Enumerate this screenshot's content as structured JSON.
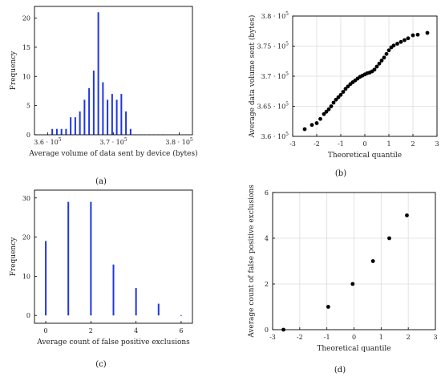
{
  "chart_data": [
    {
      "panel": "(a)",
      "type": "bar",
      "xlabel": "Average volume of data sent by device (bytes)",
      "ylabel": "Frequency",
      "xlim": [
        358000,
        382000
      ],
      "ylim": [
        0,
        22
      ],
      "xticks": [
        360000,
        370000,
        380000
      ],
      "xtick_labels": [
        "3.6 · 10^5",
        "3.7 · 10^5",
        "3.8 · 10^5"
      ],
      "yticks": [
        0,
        5,
        10,
        15,
        20
      ],
      "grid": false,
      "bar_color": "#1f36e0",
      "x": [
        360000,
        360700,
        361400,
        362100,
        362800,
        363500,
        364200,
        364900,
        365600,
        366300,
        367000,
        367700,
        368400,
        369100,
        369800,
        370500,
        371200,
        371900,
        372600,
        373300,
        374000,
        374700,
        375400,
        376100,
        376800,
        377500
      ],
      "values": [
        0,
        1,
        1,
        1,
        1,
        3,
        3,
        4,
        6,
        8,
        11,
        21,
        9,
        6,
        7,
        6,
        7,
        4,
        1,
        0,
        0,
        0,
        0,
        0,
        0,
        0
      ]
    },
    {
      "panel": "(b)",
      "type": "scatter",
      "xlabel": "Theoretical quantile",
      "ylabel": "Average data volume sent (bytes)",
      "xlim": [
        -3,
        3
      ],
      "ylim": [
        360000,
        380000
      ],
      "xticks": [
        -3,
        -2,
        -1,
        0,
        1,
        2,
        3
      ],
      "yticks": [
        360000,
        365000,
        370000,
        375000,
        380000
      ],
      "ytick_labels": [
        "3.6 · 10^5",
        "3.65 · 10^5",
        "3.7 · 10^5",
        "3.75 · 10^5",
        "3.8 · 10^5"
      ],
      "grid": true,
      "point_color": "#000000",
      "points": [
        [
          -2.5,
          361200
        ],
        [
          -2.2,
          361900
        ],
        [
          -2.0,
          362200
        ],
        [
          -1.85,
          362900
        ],
        [
          -1.7,
          363700
        ],
        [
          -1.6,
          364100
        ],
        [
          -1.5,
          364500
        ],
        [
          -1.4,
          365000
        ],
        [
          -1.3,
          365600
        ],
        [
          -1.2,
          366100
        ],
        [
          -1.1,
          366500
        ],
        [
          -1.0,
          366900
        ],
        [
          -0.9,
          367400
        ],
        [
          -0.8,
          367900
        ],
        [
          -0.7,
          368300
        ],
        [
          -0.6,
          368700
        ],
        [
          -0.5,
          369000
        ],
        [
          -0.4,
          369300
        ],
        [
          -0.3,
          369600
        ],
        [
          -0.2,
          369900
        ],
        [
          -0.1,
          370100
        ],
        [
          0.0,
          370300
        ],
        [
          0.1,
          370500
        ],
        [
          0.2,
          370600
        ],
        [
          0.3,
          370800
        ],
        [
          0.4,
          371100
        ],
        [
          0.5,
          371600
        ],
        [
          0.6,
          372100
        ],
        [
          0.7,
          372600
        ],
        [
          0.8,
          373100
        ],
        [
          0.9,
          373700
        ],
        [
          1.0,
          374300
        ],
        [
          1.1,
          374800
        ],
        [
          1.2,
          375100
        ],
        [
          1.35,
          375400
        ],
        [
          1.5,
          375700
        ],
        [
          1.65,
          376000
        ],
        [
          1.8,
          376300
        ],
        [
          2.0,
          376800
        ],
        [
          2.2,
          376900
        ],
        [
          2.6,
          377200
        ]
      ]
    },
    {
      "panel": "(c)",
      "type": "bar",
      "xlabel": "Average count of false positive exclusions",
      "ylabel": "Frequency",
      "xlim": [
        -0.5,
        6.5
      ],
      "ylim": [
        -2,
        32
      ],
      "xticks": [
        0,
        2,
        4,
        6
      ],
      "yticks": [
        0,
        10,
        20,
        30
      ],
      "grid": false,
      "bar_color": "#1f36e0",
      "x": [
        0,
        1,
        2,
        3,
        4,
        5,
        6
      ],
      "values": [
        19,
        29,
        29,
        13,
        7,
        3,
        0
      ]
    },
    {
      "panel": "(d)",
      "type": "scatter",
      "xlabel": "Theoretical quantile",
      "ylabel": "Average count of false positive exclusions",
      "xlim": [
        -3,
        3
      ],
      "ylim": [
        0,
        6
      ],
      "xticks": [
        -3,
        -2,
        -1,
        0,
        1,
        2,
        3
      ],
      "yticks": [
        0,
        2,
        4,
        6
      ],
      "grid": true,
      "point_color": "#000000",
      "points": [
        [
          -2.6,
          0
        ],
        [
          -0.95,
          1
        ],
        [
          -0.05,
          2
        ],
        [
          0.7,
          3
        ],
        [
          1.3,
          4
        ],
        [
          1.95,
          5
        ]
      ]
    }
  ]
}
